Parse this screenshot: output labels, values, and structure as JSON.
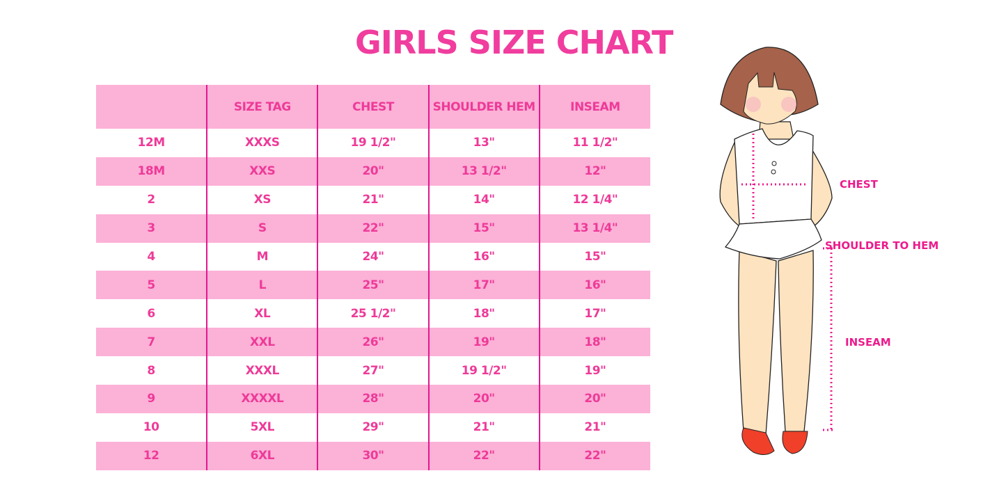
{
  "title": "GIRLS SIZE CHART",
  "table": {
    "headers": [
      "",
      "SIZE TAG",
      "CHEST",
      "SHOULDER HEM",
      "INSEAM"
    ],
    "rows": [
      [
        "12M",
        "XXXS",
        "19 1/2\"",
        "13\"",
        "11 1/2\""
      ],
      [
        "18M",
        "XXS",
        "20\"",
        "13 1/2\"",
        "12\""
      ],
      [
        "2",
        "XS",
        "21\"",
        "14\"",
        "12 1/4\""
      ],
      [
        "3",
        "S",
        "22\"",
        "15\"",
        "13 1/4\""
      ],
      [
        "4",
        "M",
        "24\"",
        "16\"",
        "15\""
      ],
      [
        "5",
        "L",
        "25\"",
        "17\"",
        "16\""
      ],
      [
        "6",
        "XL",
        "25 1/2\"",
        "18\"",
        "17\""
      ],
      [
        "7",
        "XXL",
        "26\"",
        "19\"",
        "18\""
      ],
      [
        "8",
        "XXXL",
        "27\"",
        "19 1/2\"",
        "19\""
      ],
      [
        "9",
        "XXXXL",
        "28\"",
        "20\"",
        "20\""
      ],
      [
        "10",
        "5XL",
        "29\"",
        "21\"",
        "21\""
      ],
      [
        "12",
        "6XL",
        "30\"",
        "22\"",
        "22\""
      ]
    ]
  },
  "illustration": {
    "labels": {
      "chest": "CHEST",
      "shoulder": "SHOULDER TO HEM",
      "inseam": "INSEAM"
    }
  },
  "colors": {
    "accent": "#ee3a98",
    "band": "#fcb1d7",
    "divider": "#e3178e"
  }
}
